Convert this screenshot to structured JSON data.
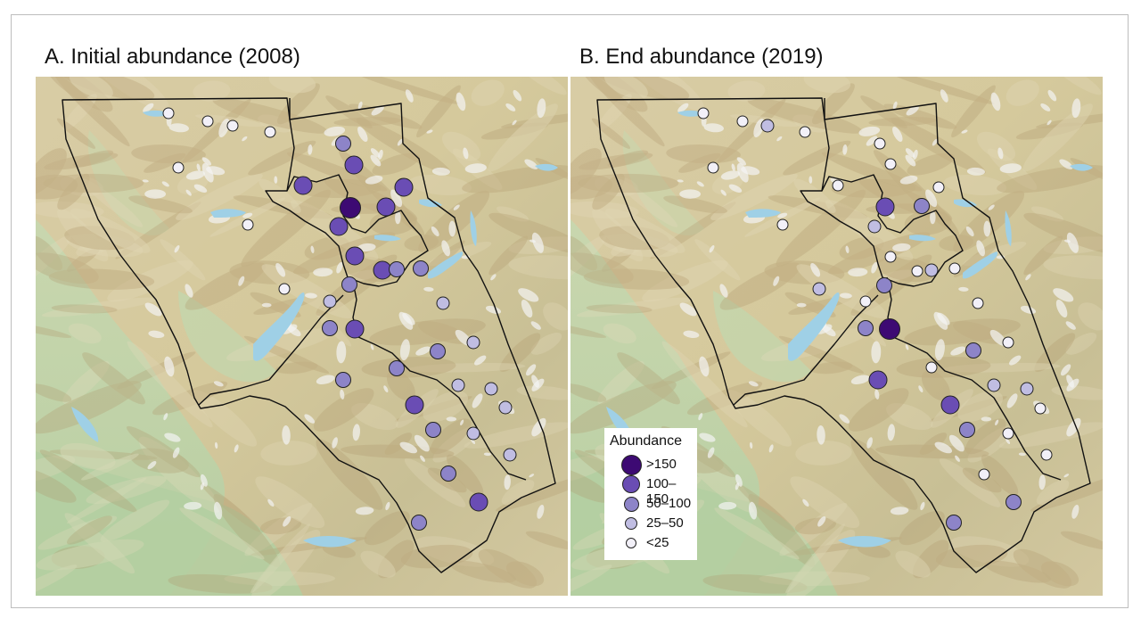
{
  "panels": [
    {
      "title": "A. Initial abundance (2008)",
      "sites": [
        {
          "lon": 149,
          "lat": 41,
          "cls": "<25"
        },
        {
          "lon": 193,
          "lat": 50,
          "cls": "<25"
        },
        {
          "lon": 221,
          "lat": 55,
          "cls": "<25"
        },
        {
          "lon": 263,
          "lat": 62,
          "cls": "<25"
        },
        {
          "lon": 160,
          "lat": 102,
          "cls": "<25"
        },
        {
          "lon": 238,
          "lat": 166,
          "cls": "<25"
        },
        {
          "lon": 279,
          "lat": 238,
          "cls": "<25"
        },
        {
          "lon": 345,
          "lat": 75,
          "cls": "50-100"
        },
        {
          "lon": 357,
          "lat": 99,
          "cls": "100-150"
        },
        {
          "lon": 300,
          "lat": 122,
          "cls": "100-150"
        },
        {
          "lon": 353,
          "lat": 147,
          "cls": ">150"
        },
        {
          "lon": 393,
          "lat": 146,
          "cls": "100-150"
        },
        {
          "lon": 413,
          "lat": 124,
          "cls": "100-150"
        },
        {
          "lon": 340,
          "lat": 168,
          "cls": "100-150"
        },
        {
          "lon": 358,
          "lat": 201,
          "cls": "100-150"
        },
        {
          "lon": 389,
          "lat": 217,
          "cls": "100-150"
        },
        {
          "lon": 405,
          "lat": 216,
          "cls": "50-100"
        },
        {
          "lon": 432,
          "lat": 215,
          "cls": "50-100"
        },
        {
          "lon": 352,
          "lat": 233,
          "cls": "50-100"
        },
        {
          "lon": 330,
          "lat": 252,
          "cls": "25-50"
        },
        {
          "lon": 330,
          "lat": 282,
          "cls": "50-100"
        },
        {
          "lon": 358,
          "lat": 283,
          "cls": "100-150"
        },
        {
          "lon": 457,
          "lat": 254,
          "cls": "25-50"
        },
        {
          "lon": 491,
          "lat": 298,
          "cls": "25-50"
        },
        {
          "lon": 451,
          "lat": 308,
          "cls": "50-100"
        },
        {
          "lon": 405,
          "lat": 327,
          "cls": "50-100"
        },
        {
          "lon": 345,
          "lat": 340,
          "cls": "50-100"
        },
        {
          "lon": 474,
          "lat": 346,
          "cls": "25-50"
        },
        {
          "lon": 511,
          "lat": 350,
          "cls": "25-50"
        },
        {
          "lon": 425,
          "lat": 368,
          "cls": "100-150"
        },
        {
          "lon": 527,
          "lat": 371,
          "cls": "25-50"
        },
        {
          "lon": 446,
          "lat": 396,
          "cls": "50-100"
        },
        {
          "lon": 491,
          "lat": 400,
          "cls": "25-50"
        },
        {
          "lon": 532,
          "lat": 424,
          "cls": "25-50"
        },
        {
          "lon": 463,
          "lat": 445,
          "cls": "50-100"
        },
        {
          "lon": 497,
          "lat": 477,
          "cls": "100-150"
        },
        {
          "lon": 430,
          "lat": 500,
          "cls": "50-100"
        }
      ]
    },
    {
      "title": "B. End abundance (2019)",
      "sites": [
        {
          "lon": 149,
          "lat": 41,
          "cls": "<25"
        },
        {
          "lon": 193,
          "lat": 50,
          "cls": "<25"
        },
        {
          "lon": 221,
          "lat": 55,
          "cls": "25-50"
        },
        {
          "lon": 263,
          "lat": 62,
          "cls": "<25"
        },
        {
          "lon": 160,
          "lat": 102,
          "cls": "<25"
        },
        {
          "lon": 238,
          "lat": 166,
          "cls": "<25"
        },
        {
          "lon": 279,
          "lat": 238,
          "cls": "25-50"
        },
        {
          "lon": 347,
          "lat": 75,
          "cls": "<25"
        },
        {
          "lon": 359,
          "lat": 98,
          "cls": "<25"
        },
        {
          "lon": 300,
          "lat": 122,
          "cls": "<25"
        },
        {
          "lon": 413,
          "lat": 124,
          "cls": "<25"
        },
        {
          "lon": 353,
          "lat": 146,
          "cls": "100-150"
        },
        {
          "lon": 394,
          "lat": 145,
          "cls": "50-100"
        },
        {
          "lon": 341,
          "lat": 168,
          "cls": "25-50"
        },
        {
          "lon": 359,
          "lat": 202,
          "cls": "<25"
        },
        {
          "lon": 389,
          "lat": 218,
          "cls": "<25"
        },
        {
          "lon": 405,
          "lat": 217,
          "cls": "25-50"
        },
        {
          "lon": 431,
          "lat": 215,
          "cls": "<25"
        },
        {
          "lon": 352,
          "lat": 234,
          "cls": "50-100"
        },
        {
          "lon": 331,
          "lat": 252,
          "cls": "<25"
        },
        {
          "lon": 331,
          "lat": 282,
          "cls": "50-100"
        },
        {
          "lon": 358,
          "lat": 283,
          "cls": ">150"
        },
        {
          "lon": 457,
          "lat": 254,
          "cls": "<25"
        },
        {
          "lon": 491,
          "lat": 298,
          "cls": "<25"
        },
        {
          "lon": 452,
          "lat": 307,
          "cls": "50-100"
        },
        {
          "lon": 405,
          "lat": 326,
          "cls": "<25"
        },
        {
          "lon": 345,
          "lat": 340,
          "cls": "100-150"
        },
        {
          "lon": 475,
          "lat": 346,
          "cls": "25-50"
        },
        {
          "lon": 512,
          "lat": 350,
          "cls": "25-50"
        },
        {
          "lon": 426,
          "lat": 368,
          "cls": "100-150"
        },
        {
          "lon": 527,
          "lat": 372,
          "cls": "<25"
        },
        {
          "lon": 445,
          "lat": 396,
          "cls": "50-100"
        },
        {
          "lon": 491,
          "lat": 400,
          "cls": "<25"
        },
        {
          "lon": 534,
          "lat": 424,
          "cls": "<25"
        },
        {
          "lon": 464,
          "lat": 446,
          "cls": "<25"
        },
        {
          "lon": 497,
          "lat": 477,
          "cls": "50-100"
        },
        {
          "lon": 430,
          "lat": 500,
          "cls": "50-100"
        }
      ]
    }
  ],
  "legend": {
    "title": "Abundance",
    "classes": [
      {
        "key": ">150",
        "label": ">150",
        "color": "#3d0a73"
      },
      {
        "key": "100-150",
        "label": "100–150",
        "color": "#6a4db4"
      },
      {
        "key": "50-100",
        "label": "50–100",
        "color": "#8d84c8"
      },
      {
        "key": "25-50",
        "label": "25–50",
        "color": "#c0bde2"
      },
      {
        "key": "<25",
        "label": "<25",
        "color": "#f2f0f8"
      }
    ]
  },
  "colors": {
    "terrain_light": "#d9cfa8",
    "terrain_green": "#b9d2a6",
    "terrain_tan": "#c9b287",
    "water": "#9fd0e6",
    "snow": "#f4f4f4",
    "boundary": "#111111"
  }
}
